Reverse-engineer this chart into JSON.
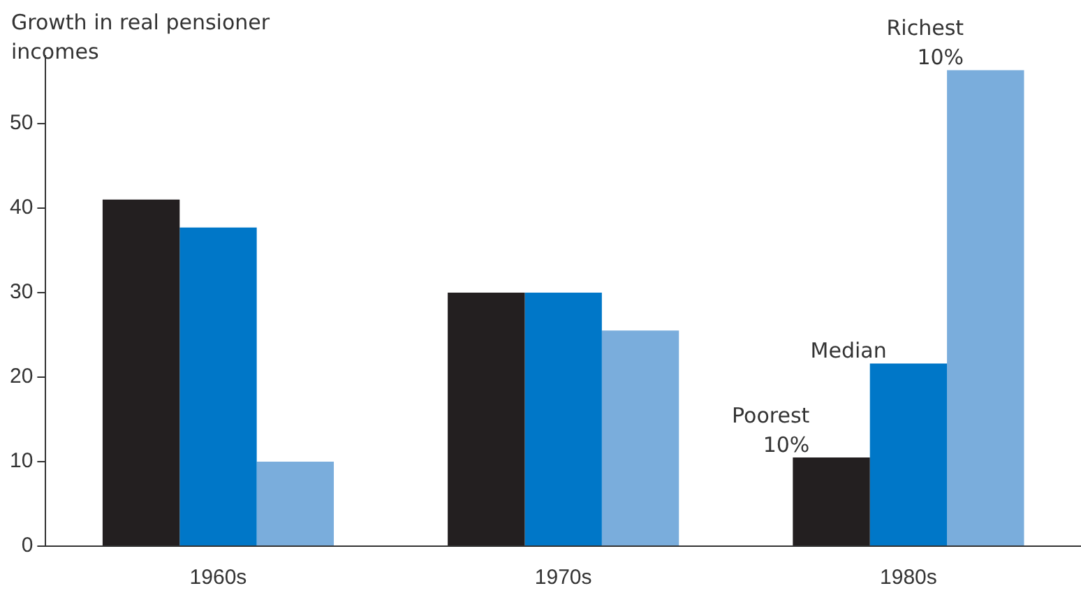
{
  "chart_data": {
    "type": "bar",
    "ylabel": "Growth in real pensioner incomes",
    "categories": [
      "1960s",
      "1970s",
      "1980s"
    ],
    "series": [
      {
        "name": "Poorest 10%",
        "color": "#231f20",
        "values": [
          41,
          30,
          10.5
        ]
      },
      {
        "name": "Median",
        "color": "#0077c8",
        "values": [
          37.7,
          30,
          21.6
        ]
      },
      {
        "name": "Richest 10%",
        "color": "#7aaddc",
        "values": [
          10,
          25.5,
          56.3
        ]
      }
    ],
    "ylim": [
      0,
      58
    ],
    "yticks": [
      0,
      10,
      20,
      30,
      40,
      50
    ],
    "grid": false,
    "legend": false
  }
}
